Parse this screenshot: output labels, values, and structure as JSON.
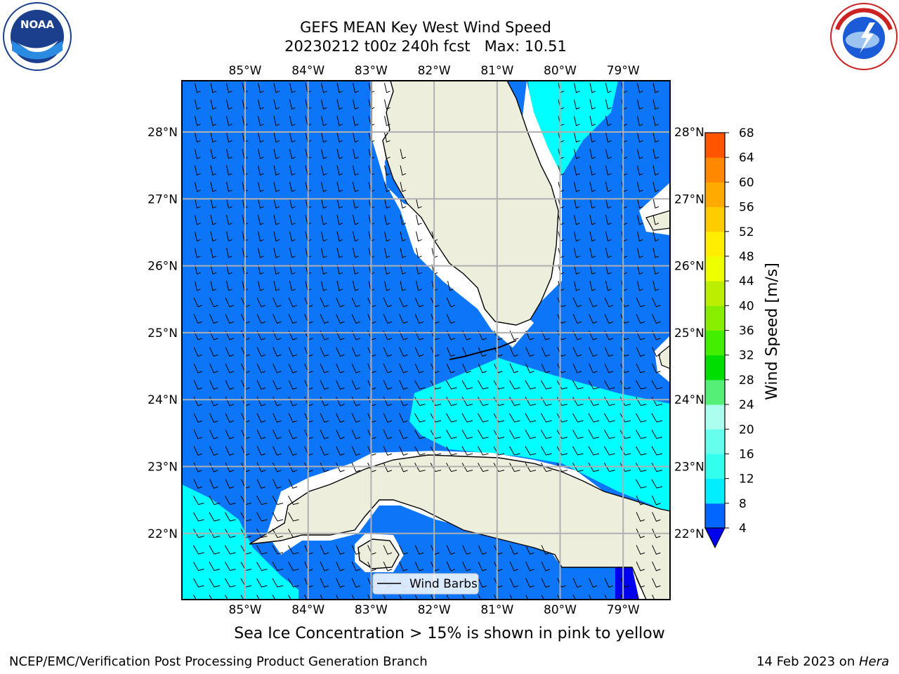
{
  "title_line1": "GEFS MEAN Key West Wind Speed",
  "title_line2": "20230212 t00z 240h fcst   Max: 10.51",
  "longitude_labels": [
    "85°W",
    "84°W",
    "83°W",
    "82°W",
    "81°W",
    "80°W",
    "79°W"
  ],
  "latitude_labels": [
    "28°N",
    "27°N",
    "26°N",
    "25°N",
    "24°N",
    "23°N",
    "22°N"
  ],
  "colorbar": {
    "label": "Wind Speed [m/s]",
    "ticks": [
      "4",
      "8",
      "12",
      "16",
      "20",
      "24",
      "28",
      "32",
      "36",
      "40",
      "44",
      "48",
      "52",
      "56",
      "60",
      "64",
      "68"
    ],
    "colors": [
      "#0066ff",
      "#00eeff",
      "#33ffee",
      "#66ffee",
      "#aaffee",
      "#55ee77",
      "#00dd00",
      "#44ee00",
      "#88ee00",
      "#bbee00",
      "#eeff00",
      "#ffee00",
      "#ffcc00",
      "#ffaa00",
      "#ff8800",
      "#ff5500",
      "#ff2200",
      "#ff0000"
    ]
  },
  "legend_label": "Wind Barbs",
  "note": "Sea Ice Concentration > 15% is shown in pink to yellow",
  "footer_left": "NCEP/EMC/Verification Post Processing Product Generation Branch",
  "footer_date": "14 Feb 2023 on ",
  "footer_machine": "Hera",
  "colors": {
    "ocean_blue": "#0d75f8",
    "cyan": "#00ffff",
    "land": "#eeeedd",
    "grid": "#b0b0b0",
    "deep_blue": "#0000ee"
  },
  "logos": [
    "noaa-logo",
    "nws-logo"
  ]
}
